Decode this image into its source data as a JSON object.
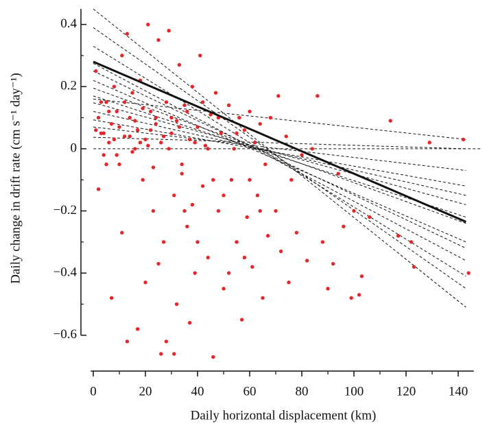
{
  "chart_data": {
    "type": "scatter",
    "xlabel": "Daily horizontal displacement (km)",
    "ylabel": "Daily change in drift rate (cm s⁻¹ day⁻¹)",
    "xlim": [
      -1,
      146
    ],
    "ylim": [
      -0.68,
      0.45
    ],
    "xticks": [
      0,
      20,
      40,
      60,
      80,
      100,
      120,
      140
    ],
    "xminorticks": [
      10,
      30,
      50,
      70,
      90,
      110,
      130
    ],
    "yticks": [
      {
        "value": -0.6,
        "label": "−0.6"
      },
      {
        "value": -0.4,
        "label": "−0.4"
      },
      {
        "value": -0.2,
        "label": "−0.2"
      },
      0,
      0.2,
      0.4
    ],
    "yminorticks": [
      -0.5,
      -0.3,
      -0.1,
      0.1,
      0.3
    ],
    "hline": 0,
    "series": [
      {
        "color": "#e8262a",
        "x": [
          1,
          2,
          3,
          4,
          5,
          6,
          7,
          8,
          9,
          10,
          11,
          12,
          13,
          14,
          15,
          16,
          17,
          18,
          19,
          20,
          21,
          22,
          23,
          24,
          25,
          26,
          27,
          28,
          29,
          30,
          31,
          32,
          33,
          34,
          35,
          36,
          37,
          38,
          39,
          40,
          41,
          42,
          43,
          44,
          45,
          46,
          47,
          48,
          49,
          50,
          52,
          53,
          54,
          55,
          56,
          57,
          58,
          59,
          60,
          61,
          62,
          63,
          64,
          65,
          66,
          67,
          68,
          70,
          71,
          72,
          74,
          75,
          76,
          78,
          80,
          82,
          84,
          86,
          88,
          90,
          92,
          94,
          96,
          99,
          100,
          102,
          103,
          106,
          114,
          117,
          122,
          123,
          129,
          142,
          144,
          1,
          2,
          3,
          4,
          5,
          6,
          7,
          8,
          9,
          10,
          11,
          12,
          13,
          14,
          15,
          16,
          17,
          18,
          19,
          20,
          21,
          22,
          23,
          24,
          25,
          26,
          27,
          28,
          29,
          30,
          31,
          32,
          33,
          34,
          35,
          36,
          37,
          38,
          39,
          40,
          42,
          44,
          46,
          48,
          50,
          52,
          55,
          58,
          60,
          64
        ],
        "values": [
          0.25,
          0.1,
          0.05,
          -0.02,
          0.15,
          0.02,
          0.08,
          0.2,
          0.12,
          -0.05,
          0.3,
          0.04,
          0.37,
          0.1,
          0.18,
          0.0,
          0.06,
          0.22,
          -0.1,
          0.03,
          0.4,
          0.12,
          -0.2,
          0.08,
          0.35,
          0.02,
          -0.3,
          0.15,
          0.38,
          0.05,
          -0.15,
          0.09,
          0.27,
          -0.05,
          0.14,
          -0.25,
          0.03,
          0.2,
          -0.4,
          0.07,
          0.3,
          -0.12,
          0.01,
          -0.35,
          0.11,
          -0.67,
          0.18,
          -0.2,
          0.05,
          -0.45,
          0.14,
          -0.1,
          0.0,
          -0.3,
          0.1,
          -0.55,
          0.06,
          -0.22,
          0.12,
          -0.38,
          0.02,
          -0.15,
          0.08,
          -0.48,
          -0.05,
          -0.28,
          0.1,
          -0.2,
          0.17,
          -0.33,
          0.04,
          -0.43,
          -0.1,
          -0.27,
          -0.02,
          -0.36,
          0.0,
          0.17,
          -0.3,
          -0.45,
          -0.37,
          -0.08,
          -0.25,
          -0.48,
          -0.2,
          -0.47,
          -0.41,
          -0.22,
          0.09,
          -0.28,
          -0.3,
          -0.38,
          0.02,
          0.03,
          -0.4,
          0.06,
          -0.13,
          0.15,
          0.05,
          -0.05,
          0.12,
          -0.48,
          0.03,
          -0.02,
          0.07,
          -0.27,
          0.15,
          -0.62,
          0.04,
          -0.01,
          0.09,
          -0.58,
          0.02,
          0.13,
          -0.43,
          0.01,
          0.06,
          -0.06,
          0.1,
          -0.37,
          -0.66,
          0.04,
          -0.62,
          0.0,
          0.1,
          -0.66,
          -0.5,
          0.07,
          -0.08,
          -0.2,
          0.12,
          -0.56,
          -0.18,
          0.02,
          -0.3,
          0.15,
          0.0,
          -0.1,
          0.1,
          -0.15,
          -0.4,
          0.05,
          -0.35,
          -0.1,
          -0.2
        ]
      }
    ],
    "fit_lines": [
      {
        "x": [
          0,
          143
        ],
        "y": [
          0.45,
          -0.51
        ]
      },
      {
        "x": [
          0,
          143
        ],
        "y": [
          0.39,
          -0.45
        ]
      },
      {
        "x": [
          0,
          143
        ],
        "y": [
          0.33,
          -0.41
        ]
      },
      {
        "x": [
          0,
          143
        ],
        "y": [
          0.275,
          -0.36
        ]
      },
      {
        "x": [
          0,
          143
        ],
        "y": [
          0.25,
          -0.32
        ]
      },
      {
        "x": [
          0,
          143
        ],
        "y": [
          0.22,
          -0.3
        ]
      },
      {
        "x": [
          0,
          143
        ],
        "y": [
          0.195,
          -0.24
        ]
      },
      {
        "x": [
          0,
          143
        ],
        "y": [
          0.17,
          -0.22
        ]
      },
      {
        "x": [
          0,
          143
        ],
        "y": [
          0.148,
          -0.18
        ]
      },
      {
        "x": [
          0,
          143
        ],
        "y": [
          0.12,
          -0.15
        ]
      },
      {
        "x": [
          0,
          143
        ],
        "y": [
          0.093,
          -0.12
        ]
      },
      {
        "x": [
          0,
          143
        ],
        "y": [
          0.07,
          -0.07
        ]
      },
      {
        "x": [
          0,
          143
        ],
        "y": [
          0.037,
          0.0
        ]
      },
      {
        "x": [
          0,
          143
        ],
        "y": [
          0.16,
          0.03
        ]
      }
    ],
    "trend_line": {
      "x": [
        0,
        143
      ],
      "y": [
        0.28,
        -0.235
      ]
    }
  }
}
